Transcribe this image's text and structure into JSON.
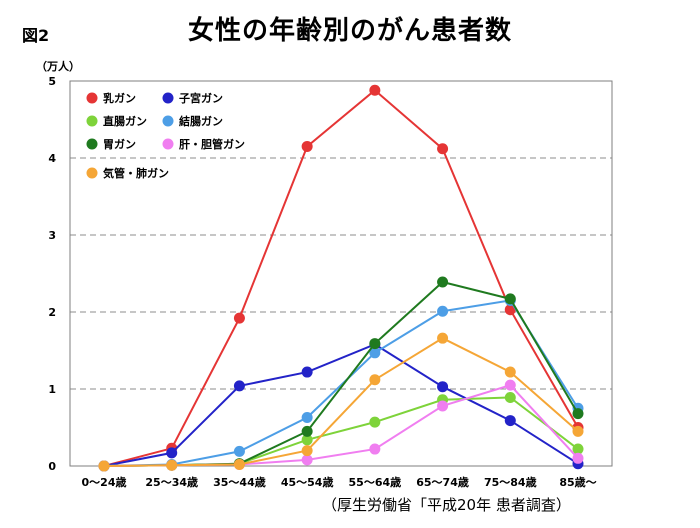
{
  "figure_label": "図2",
  "source_note": "（厚生労働省「平成20年 患者調査）",
  "chart_data": {
    "type": "line",
    "title": "女性の年齢別のがん患者数",
    "unit_label": "（万人）",
    "xlabel": "",
    "ylabel": "",
    "ylim": [
      0,
      5
    ],
    "yticks": [
      "0",
      "1",
      "2",
      "3",
      "4",
      "5"
    ],
    "categories": [
      "0〜24歳",
      "25〜34歳",
      "35〜44歳",
      "45〜54歳",
      "55〜64歳",
      "65〜74歳",
      "75〜84歳",
      "85歳〜"
    ],
    "grid": "horizontal dashed",
    "legend_position": "top-left",
    "series": [
      {
        "name": "乳ガン",
        "color": "#e53535",
        "values": [
          0.0,
          0.23,
          1.92,
          4.15,
          4.88,
          4.12,
          2.03,
          0.5
        ]
      },
      {
        "name": "子宮ガン",
        "color": "#2323c8",
        "values": [
          0.0,
          0.17,
          1.04,
          1.22,
          1.58,
          1.03,
          0.59,
          0.03
        ]
      },
      {
        "name": "直腸ガン",
        "color": "#7ed33a",
        "values": [
          0.0,
          0.01,
          0.03,
          0.34,
          0.57,
          0.86,
          0.89,
          0.22
        ]
      },
      {
        "name": "結腸ガン",
        "color": "#4d9ee6",
        "values": [
          0.0,
          0.02,
          0.19,
          0.63,
          1.47,
          2.01,
          2.15,
          0.75
        ]
      },
      {
        "name": "胃ガン",
        "color": "#1f7a1f",
        "values": [
          0.0,
          0.01,
          0.03,
          0.45,
          1.59,
          2.39,
          2.17,
          0.68
        ]
      },
      {
        "name": "肝・胆管ガン",
        "color": "#f07ef0",
        "values": [
          0.0,
          0.01,
          0.02,
          0.08,
          0.22,
          0.78,
          1.05,
          0.1
        ]
      },
      {
        "name": "気管・肺ガン",
        "color": "#f5a636",
        "values": [
          0.0,
          0.01,
          0.02,
          0.2,
          1.12,
          1.66,
          1.22,
          0.45
        ]
      }
    ]
  }
}
